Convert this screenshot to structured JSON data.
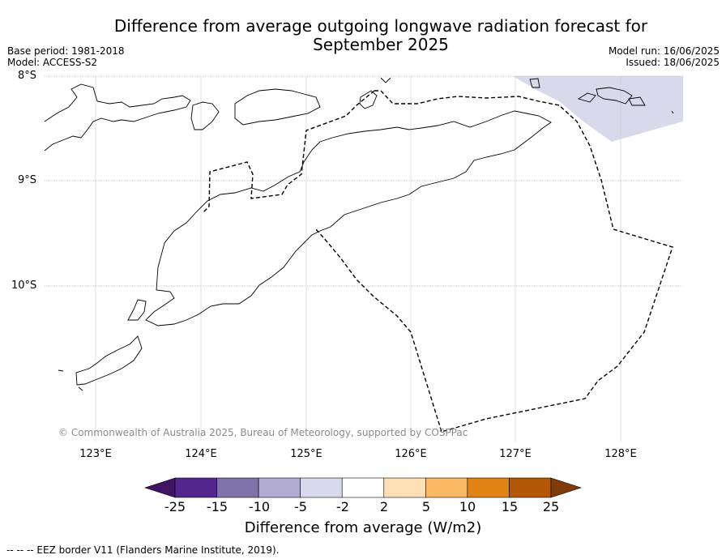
{
  "title_line1": "Difference from average outgoing longwave radiation forecast for",
  "title_line2": "September 2025",
  "base_period": "Base period: 1981-2018",
  "model": "Model: ACCESS-S2",
  "model_run": "Model run: 16/06/2025",
  "issued": "Issued: 18/06/2025",
  "lat_ticks": [
    "8°S",
    "9°S",
    "10°S"
  ],
  "lon_ticks": [
    "123°E",
    "124°E",
    "125°E",
    "126°E",
    "127°E",
    "128°E"
  ],
  "copyright": "© Commonwealth of Australia 2025, Bureau of Meteorology, supported by COSPPac",
  "colorbar": {
    "labels": [
      "-25",
      "-15",
      "-10",
      "-5",
      "-2",
      "2",
      "5",
      "10",
      "15",
      "25"
    ],
    "colors": [
      "#3f1463",
      "#54278f",
      "#8073ac",
      "#b2abd2",
      "#d8daeb",
      "#ffffff",
      "#fee0b6",
      "#fdb863",
      "#e08214",
      "#b35806",
      "#7f3b08"
    ],
    "title": "Difference from average (W/m2)"
  },
  "anomaly_fill_color": "#d8daeb",
  "footnote": "--  --  -- EEZ border V11 (Flanders Marine Institute, 2019)."
}
